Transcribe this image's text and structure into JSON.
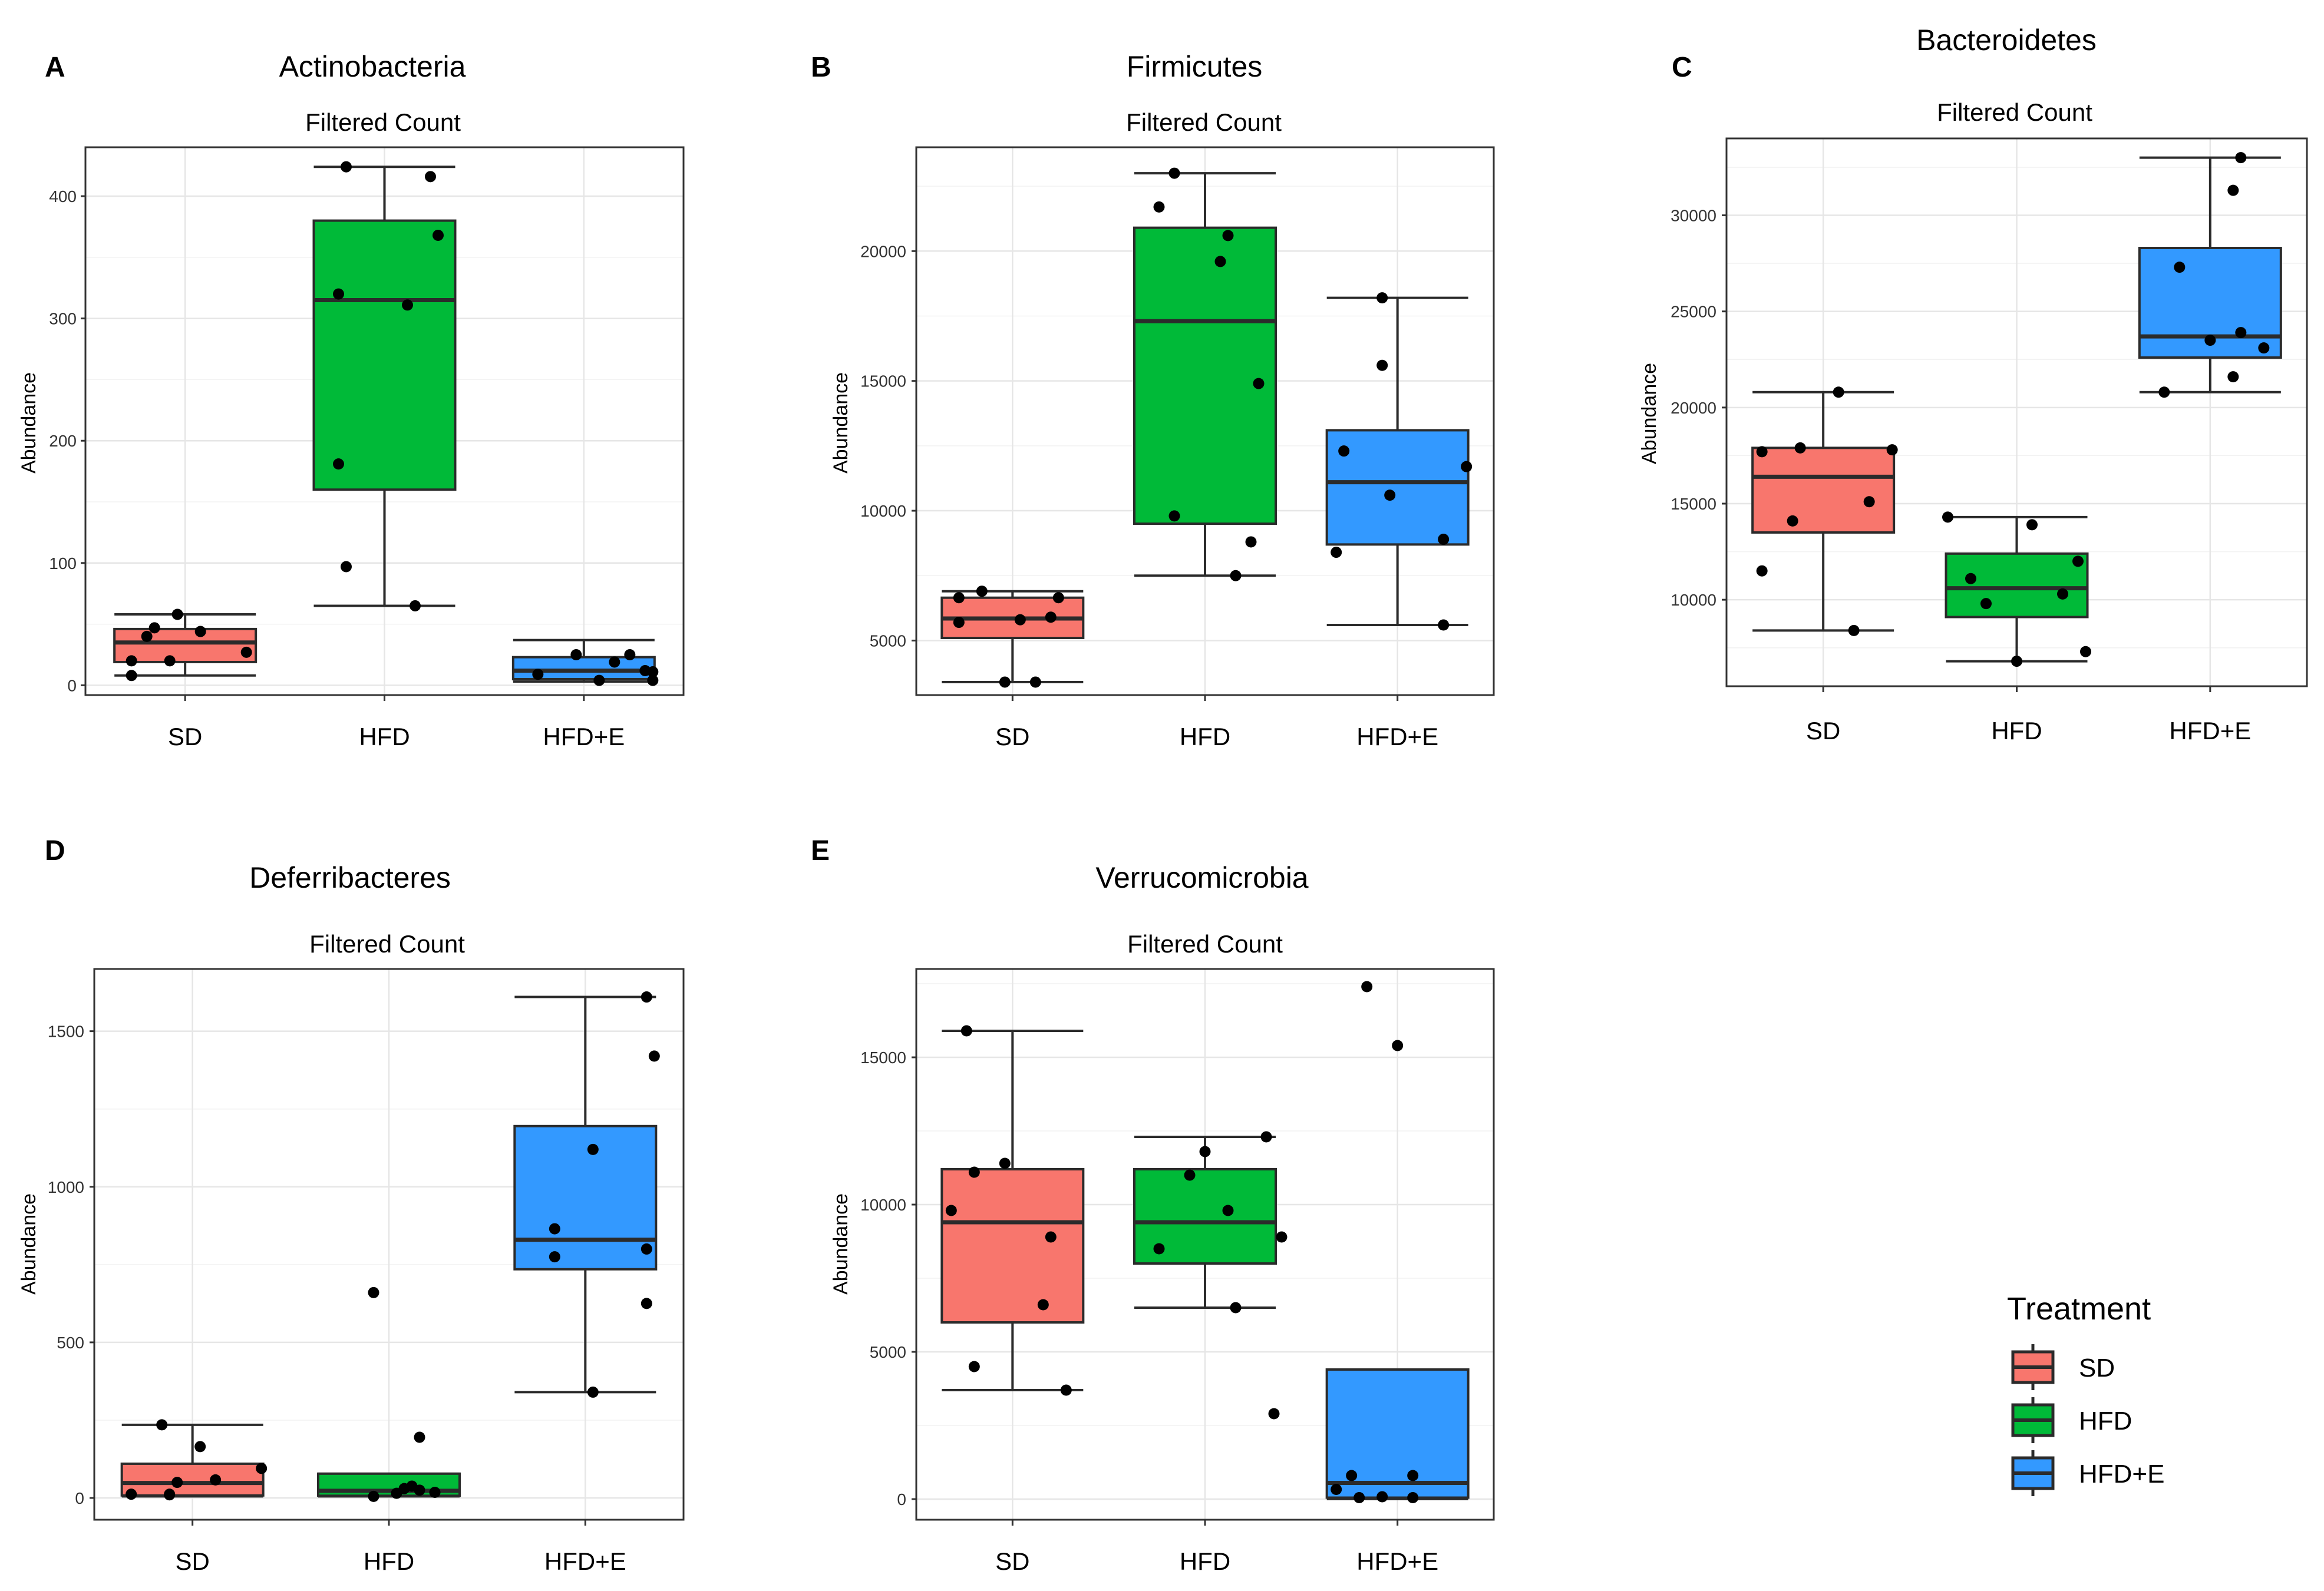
{
  "colors": {
    "SD": "#f8766d",
    "HFD": "#00ba38",
    "HFD+E": "#3399ff",
    "box_edge": "#2b2b2b",
    "point": "#000000"
  },
  "legend": {
    "title": "Treatment",
    "items": [
      {
        "label": "SD",
        "color": "#f8766d"
      },
      {
        "label": "HFD",
        "color": "#00ba38"
      },
      {
        "label": "HFD+E",
        "color": "#3399ff"
      }
    ]
  },
  "chart_data": [
    {
      "type": "box",
      "panel": "A",
      "title": "Actinobacteria",
      "subtitle": "Filtered Count",
      "ylabel": "Abundance",
      "ylim": [
        -8,
        440
      ],
      "yticks": [
        0,
        100,
        200,
        300,
        400
      ],
      "categories": [
        "SD",
        "HFD",
        "HFD+E"
      ],
      "boxes": [
        {
          "group": "SD",
          "min": 8,
          "q1": 19,
          "median": 35,
          "q3": 46,
          "max": 58,
          "points": [
            [
              -0.35,
              8
            ],
            [
              -0.35,
              20
            ],
            [
              -0.25,
              40
            ],
            [
              -0.2,
              47
            ],
            [
              -0.1,
              20
            ],
            [
              -0.05,
              58
            ],
            [
              0.1,
              44
            ],
            [
              0.4,
              27
            ]
          ]
        },
        {
          "group": "HFD",
          "min": 65,
          "q1": 160,
          "median": 315,
          "q3": 380,
          "max": 424,
          "points": [
            [
              -0.3,
              181
            ],
            [
              -0.3,
              320
            ],
            [
              -0.25,
              424
            ],
            [
              -0.25,
              97
            ],
            [
              0.15,
              311
            ],
            [
              0.2,
              65
            ],
            [
              0.3,
              416
            ],
            [
              0.35,
              368
            ]
          ]
        },
        {
          "group": "HFD+E",
          "min": 3,
          "q1": 5,
          "median": 12,
          "q3": 23,
          "max": 37,
          "points": [
            [
              -0.3,
              9
            ],
            [
              -0.05,
              25
            ],
            [
              0.1,
              4
            ],
            [
              0.2,
              19
            ],
            [
              0.3,
              25
            ],
            [
              0.4,
              12
            ],
            [
              0.45,
              4
            ],
            [
              0.45,
              11
            ]
          ]
        }
      ]
    },
    {
      "type": "box",
      "panel": "B",
      "title": "Firmicutes",
      "subtitle": "Filtered Count",
      "ylabel": "Abundance",
      "ylim": [
        2900,
        24000
      ],
      "yticks": [
        5000,
        10000,
        15000,
        20000
      ],
      "categories": [
        "SD",
        "HFD",
        "HFD+E"
      ],
      "boxes": [
        {
          "group": "SD",
          "min": 3400,
          "q1": 5100,
          "median": 5850,
          "q3": 6650,
          "max": 6900,
          "points": [
            [
              -0.35,
              5700
            ],
            [
              -0.35,
              6650
            ],
            [
              -0.2,
              6900
            ],
            [
              -0.05,
              3400
            ],
            [
              0.05,
              5800
            ],
            [
              0.15,
              3400
            ],
            [
              0.25,
              5900
            ],
            [
              0.3,
              6650
            ]
          ]
        },
        {
          "group": "HFD",
          "min": 7500,
          "q1": 9500,
          "median": 17300,
          "q3": 20900,
          "max": 23000,
          "points": [
            [
              -0.3,
              21700
            ],
            [
              -0.2,
              9800
            ],
            [
              -0.2,
              23000
            ],
            [
              0.1,
              19600
            ],
            [
              0.15,
              20600
            ],
            [
              0.2,
              7500
            ],
            [
              0.3,
              8800
            ],
            [
              0.35,
              14900
            ]
          ]
        },
        {
          "group": "HFD+E",
          "min": 5600,
          "q1": 8700,
          "median": 11100,
          "q3": 13100,
          "max": 18200,
          "points": [
            [
              -0.4,
              8400
            ],
            [
              -0.35,
              12300
            ],
            [
              -0.1,
              18200
            ],
            [
              -0.1,
              15600
            ],
            [
              -0.05,
              10600
            ],
            [
              0.3,
              5600
            ],
            [
              0.3,
              8900
            ],
            [
              0.45,
              11700
            ]
          ]
        }
      ]
    },
    {
      "type": "box",
      "panel": "C",
      "title": "Bacteroidetes",
      "subtitle": "Filtered Count",
      "ylabel": "Abundance",
      "ylim": [
        5500,
        34000
      ],
      "yticks": [
        10000,
        15000,
        20000,
        25000,
        30000
      ],
      "categories": [
        "SD",
        "HFD",
        "HFD+E"
      ],
      "boxes": [
        {
          "group": "SD",
          "min": 8400,
          "q1": 13500,
          "median": 16400,
          "q3": 17900,
          "max": 20800,
          "points": [
            [
              -0.4,
              17700
            ],
            [
              -0.4,
              11500
            ],
            [
              -0.2,
              14100
            ],
            [
              -0.15,
              17900
            ],
            [
              0.1,
              20800
            ],
            [
              0.2,
              8400
            ],
            [
              0.3,
              15100
            ],
            [
              0.45,
              17800
            ]
          ]
        },
        {
          "group": "HFD",
          "min": 6800,
          "q1": 9100,
          "median": 10600,
          "q3": 12400,
          "max": 14300,
          "points": [
            [
              -0.45,
              14300
            ],
            [
              -0.3,
              11100
            ],
            [
              -0.2,
              9800
            ],
            [
              0.0,
              6800
            ],
            [
              0.1,
              13900
            ],
            [
              0.3,
              10300
            ],
            [
              0.4,
              12000
            ],
            [
              0.45,
              7300
            ]
          ]
        },
        {
          "group": "HFD+E",
          "min": 20800,
          "q1": 22600,
          "median": 23700,
          "q3": 28300,
          "max": 33000,
          "points": [
            [
              -0.3,
              20800
            ],
            [
              -0.2,
              27300
            ],
            [
              0.0,
              23500
            ],
            [
              0.15,
              31300
            ],
            [
              0.15,
              21600
            ],
            [
              0.2,
              23900
            ],
            [
              0.2,
              33000
            ],
            [
              0.35,
              23100
            ]
          ]
        }
      ]
    },
    {
      "type": "box",
      "panel": "D",
      "title": "Deferribacteres",
      "subtitle": "Filtered Count",
      "ylabel": "Abundance",
      "ylim": [
        -70,
        1700
      ],
      "yticks": [
        0,
        500,
        1000,
        1500
      ],
      "categories": [
        "SD",
        "HFD",
        "HFD+E"
      ],
      "boxes": [
        {
          "group": "SD",
          "min": 5,
          "q1": 8,
          "median": 48,
          "q3": 110,
          "max": 235,
          "points": [
            [
              -0.4,
              12
            ],
            [
              -0.2,
              235
            ],
            [
              -0.15,
              12
            ],
            [
              -0.1,
              50
            ],
            [
              0.05,
              165
            ],
            [
              0.15,
              58
            ],
            [
              0.45,
              95
            ],
            [
              -0.15,
              10
            ]
          ]
        },
        {
          "group": "HFD",
          "min": 5,
          "q1": 7,
          "median": 23,
          "q3": 78,
          "max": 78,
          "points": [
            [
              -0.1,
              660
            ],
            [
              -0.1,
              5
            ],
            [
              0.05,
              15
            ],
            [
              0.1,
              30
            ],
            [
              0.15,
              38
            ],
            [
              0.2,
              25
            ],
            [
              0.2,
              195
            ],
            [
              0.3,
              18
            ]
          ]
        },
        {
          "group": "HFD+E",
          "min": 340,
          "q1": 735,
          "median": 830,
          "q3": 1195,
          "max": 1610,
          "points": [
            [
              -0.2,
              775
            ],
            [
              -0.2,
              865
            ],
            [
              0.05,
              340
            ],
            [
              0.05,
              1120
            ],
            [
              0.4,
              800
            ],
            [
              0.4,
              625
            ],
            [
              0.45,
              1420
            ],
            [
              0.4,
              1610
            ]
          ]
        }
      ]
    },
    {
      "type": "box",
      "panel": "E",
      "title": "Verrucomicrobia",
      "subtitle": "Filtered Count",
      "ylabel": "Abundance",
      "ylim": [
        -700,
        18000
      ],
      "yticks": [
        0,
        5000,
        10000,
        15000
      ],
      "categories": [
        "SD",
        "HFD",
        "HFD+E"
      ],
      "boxes": [
        {
          "group": "SD",
          "min": 3700,
          "q1": 6000,
          "median": 9400,
          "q3": 11200,
          "max": 15900,
          "points": [
            [
              -0.3,
              15900
            ],
            [
              -0.4,
              9800
            ],
            [
              -0.25,
              11100
            ],
            [
              -0.25,
              4500
            ],
            [
              -0.05,
              11400
            ],
            [
              0.2,
              6600
            ],
            [
              0.25,
              8900
            ],
            [
              0.35,
              3700
            ]
          ]
        },
        {
          "group": "HFD",
          "min": 6500,
          "q1": 8000,
          "median": 9400,
          "q3": 11200,
          "max": 12300,
          "points": [
            [
              -0.3,
              8500
            ],
            [
              -0.1,
              11000
            ],
            [
              0.0,
              11800
            ],
            [
              0.15,
              9800
            ],
            [
              0.2,
              6500
            ],
            [
              0.4,
              12300
            ],
            [
              0.45,
              2900
            ],
            [
              0.5,
              8900
            ]
          ]
        },
        {
          "group": "HFD+E",
          "min": 0,
          "q1": 50,
          "median": 550,
          "q3": 4400,
          "max": 4400,
          "points": [
            [
              -0.4,
              330
            ],
            [
              -0.3,
              800
            ],
            [
              -0.25,
              50
            ],
            [
              -0.2,
              17400
            ],
            [
              -0.1,
              80
            ],
            [
              0.0,
              15400
            ],
            [
              0.1,
              800
            ],
            [
              0.1,
              50
            ]
          ]
        }
      ]
    }
  ]
}
